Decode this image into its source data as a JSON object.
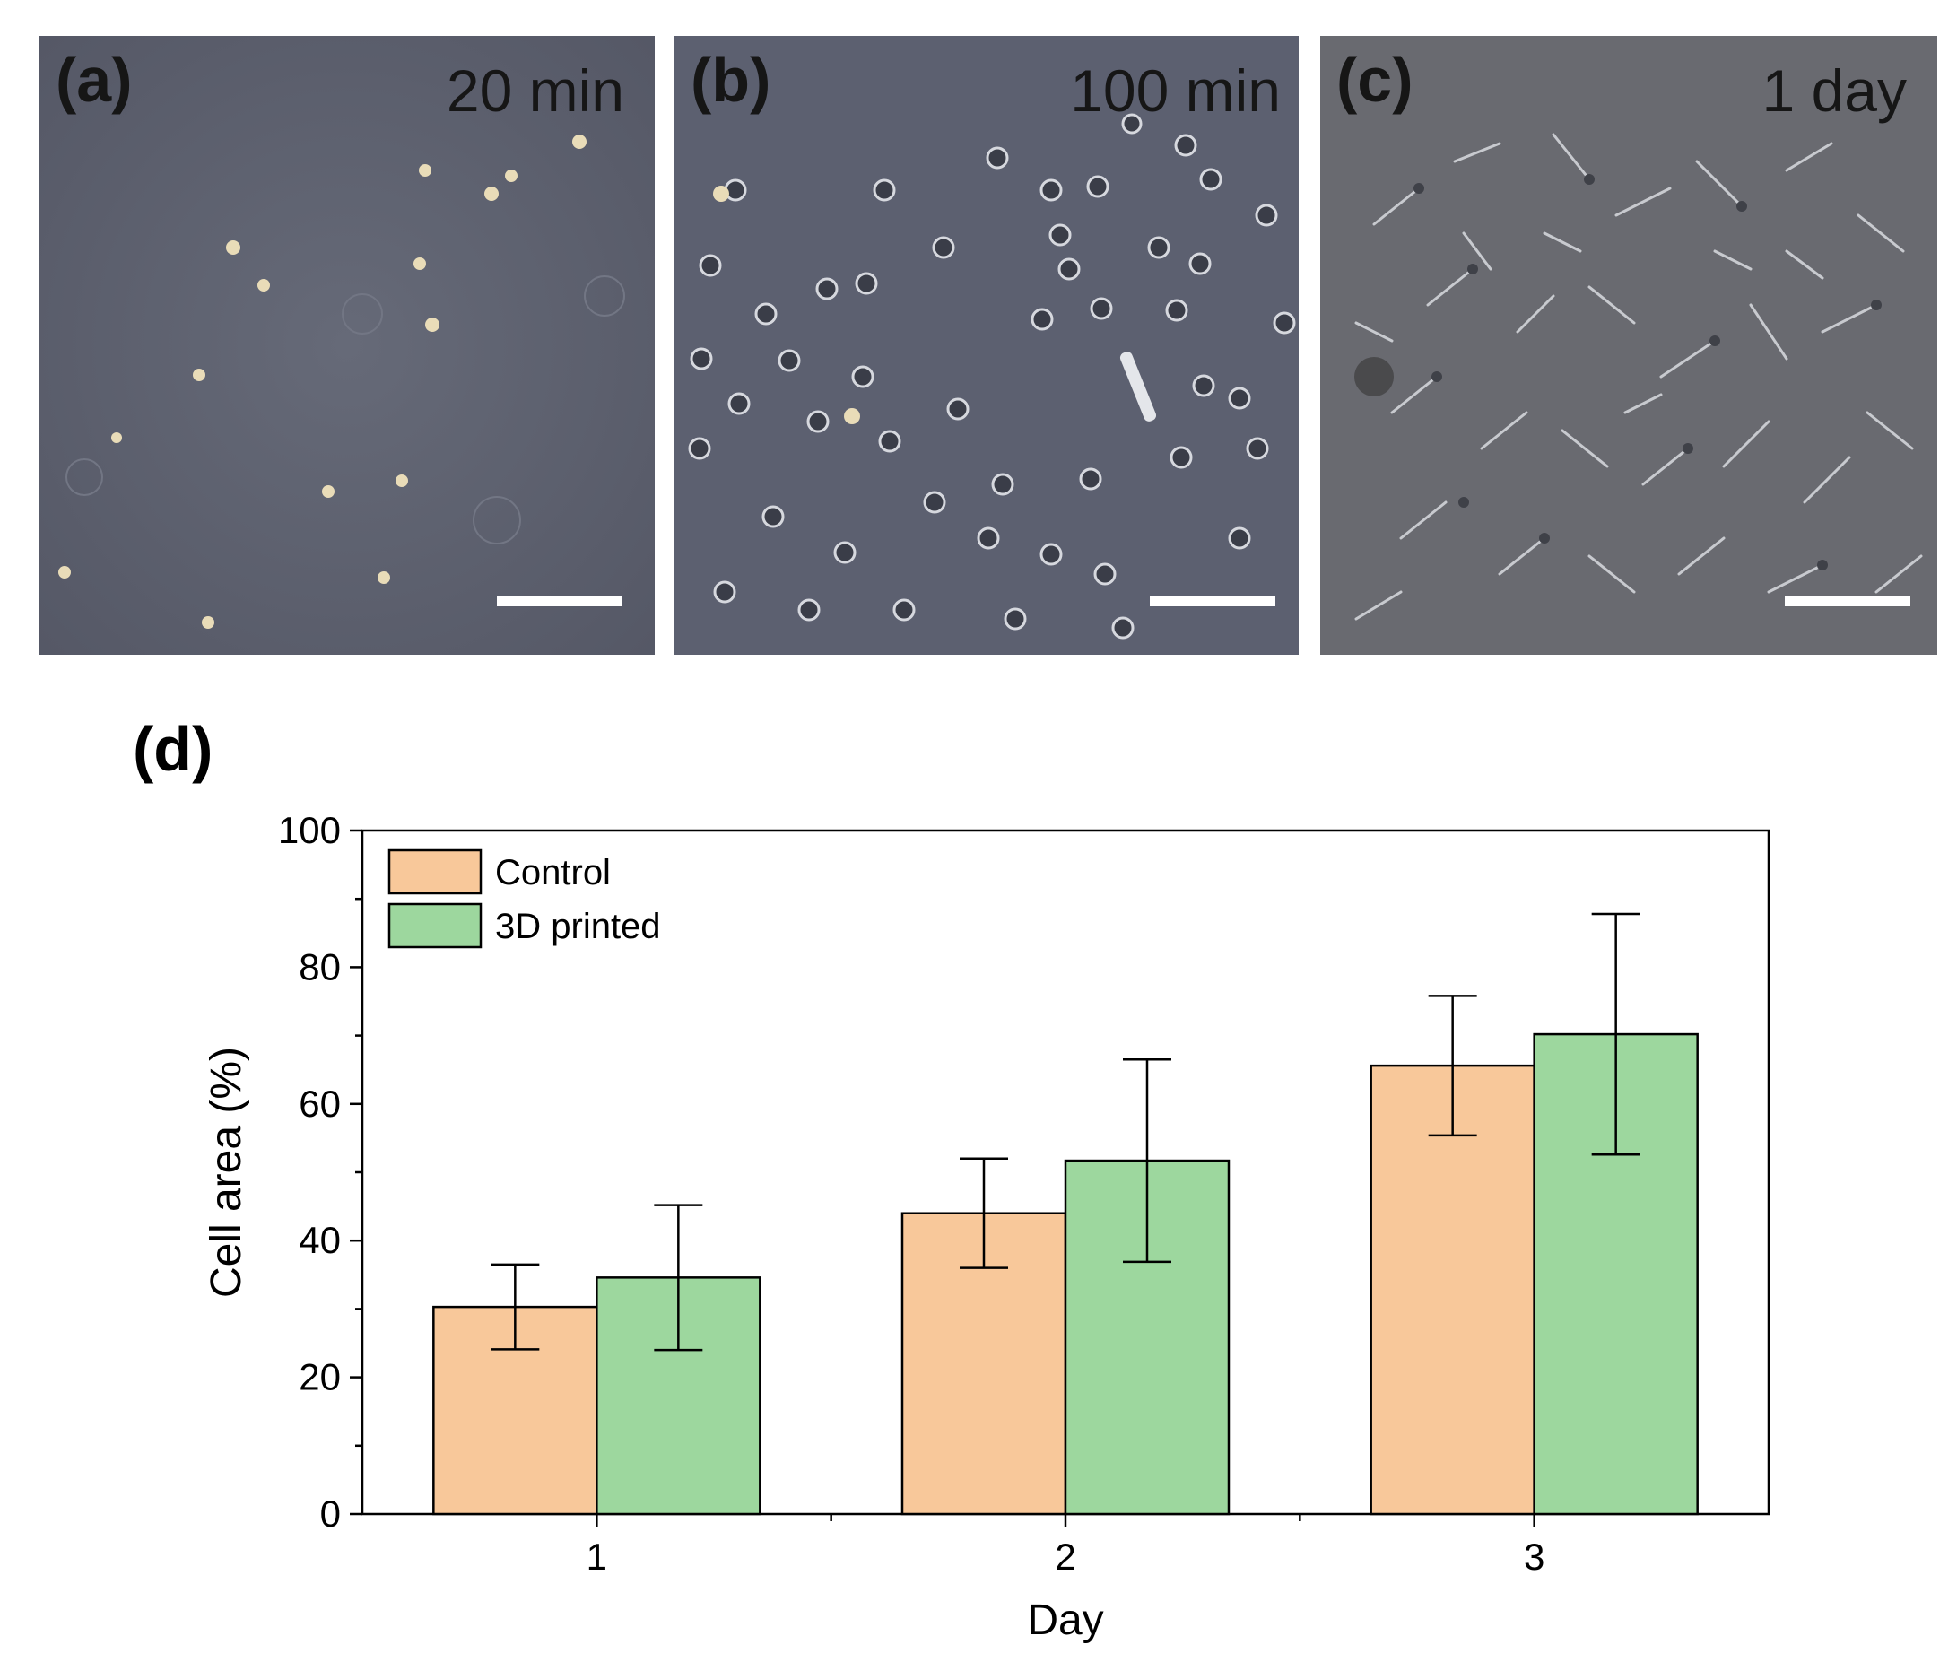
{
  "panels": [
    {
      "letter": "(a)",
      "time": "20 min"
    },
    {
      "letter": "(b)",
      "time": "100 min"
    },
    {
      "letter": "(c)",
      "time": "1 day"
    }
  ],
  "panel_d_label": "(d)",
  "chart_data": {
    "type": "bar",
    "categories": [
      "1",
      "2",
      "3"
    ],
    "xlabel": "Day",
    "ylabel": "Cell area (%)",
    "ylim": [
      0,
      100
    ],
    "yticks": [
      0,
      20,
      40,
      60,
      80,
      100
    ],
    "legend": "top-left",
    "grid": false,
    "series": [
      {
        "name": "Control",
        "color": "#f8c89a",
        "values": [
          30.3,
          44,
          65.6
        ],
        "errors": [
          6.2,
          8,
          10.2
        ]
      },
      {
        "name": "3D printed",
        "color": "#9dd79e",
        "values": [
          34.6,
          51.7,
          70.2
        ],
        "errors": [
          10.6,
          14.8,
          17.6
        ]
      }
    ]
  }
}
